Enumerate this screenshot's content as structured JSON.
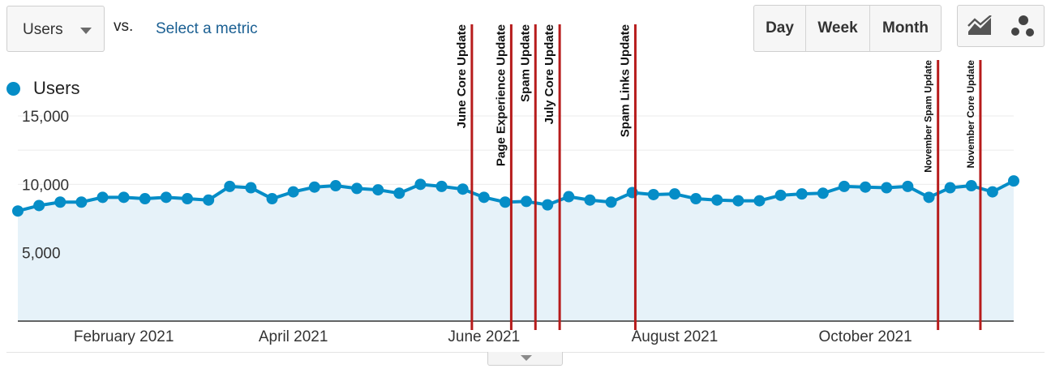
{
  "toolbar": {
    "metric_label": "Users",
    "vs_label": "vs.",
    "select_metric_label": "Select a metric",
    "periods": [
      {
        "label": "Day",
        "active": false
      },
      {
        "label": "Week",
        "active": true
      },
      {
        "label": "Month",
        "active": false
      }
    ],
    "chart_types": [
      {
        "icon": "line-chart-icon",
        "active": true
      },
      {
        "icon": "motion-chart-icon",
        "active": false
      }
    ]
  },
  "colors": {
    "series": "#058dc7",
    "area_fill": "#e6f2f9",
    "annotation_line": "#b71c1c",
    "grid": "#ebebeb",
    "axis": "#333333"
  },
  "chart_data": {
    "type": "area",
    "title": "",
    "xlabel": "",
    "ylabel": "",
    "ylim": [
      0,
      15000
    ],
    "y_ticks": [
      {
        "value": 15000,
        "label": "15,000"
      },
      {
        "value": 10000,
        "label": "10,000"
      },
      {
        "value": 5000,
        "label": "5,000"
      }
    ],
    "x_range": [
      "2021-01-03",
      "2021-11-28"
    ],
    "x_ticks": [
      {
        "date": "2021-02-07",
        "label": "February 2021"
      },
      {
        "date": "2021-04-04",
        "label": "April 2021"
      },
      {
        "date": "2021-06-06",
        "label": "June 2021"
      },
      {
        "date": "2021-08-08",
        "label": "August 2021"
      },
      {
        "date": "2021-10-10",
        "label": "October 2021"
      }
    ],
    "legend": {
      "position": "top-left"
    },
    "grid": true,
    "series": [
      {
        "name": "Users",
        "x": [
          "2021-01-03",
          "2021-01-10",
          "2021-01-17",
          "2021-01-24",
          "2021-01-31",
          "2021-02-07",
          "2021-02-14",
          "2021-02-21",
          "2021-02-28",
          "2021-03-07",
          "2021-03-14",
          "2021-03-21",
          "2021-03-28",
          "2021-04-04",
          "2021-04-11",
          "2021-04-18",
          "2021-04-25",
          "2021-05-02",
          "2021-05-09",
          "2021-05-16",
          "2021-05-23",
          "2021-05-30",
          "2021-06-06",
          "2021-06-13",
          "2021-06-20",
          "2021-06-27",
          "2021-07-04",
          "2021-07-11",
          "2021-07-18",
          "2021-07-25",
          "2021-08-01",
          "2021-08-08",
          "2021-08-15",
          "2021-08-22",
          "2021-08-29",
          "2021-09-05",
          "2021-09-12",
          "2021-09-19",
          "2021-09-26",
          "2021-10-03",
          "2021-10-10",
          "2021-10-17",
          "2021-10-24",
          "2021-10-31",
          "2021-11-07",
          "2021-11-14",
          "2021-11-21",
          "2021-11-28"
        ],
        "values": [
          8050,
          8450,
          8700,
          8700,
          9050,
          9050,
          8950,
          9050,
          8950,
          8850,
          9850,
          9750,
          8950,
          9450,
          9800,
          9900,
          9700,
          9600,
          9350,
          10000,
          9850,
          9650,
          9050,
          8700,
          8750,
          8500,
          9100,
          8850,
          8700,
          9400,
          9250,
          9300,
          8950,
          8850,
          8800,
          8800,
          9200,
          9300,
          9350,
          9850,
          9800,
          9750,
          9850,
          9050,
          9750,
          9900,
          9450,
          10250
        ]
      }
    ],
    "annotations": [
      {
        "label": "June Core Update",
        "date": "2021-06-02"
      },
      {
        "label": "Page Experience Update",
        "date": "2021-06-15"
      },
      {
        "label": "Spam Update",
        "date": "2021-06-23"
      },
      {
        "label": "July Core Update",
        "date": "2021-07-01"
      },
      {
        "label": "Spam Links Update",
        "date": "2021-07-26"
      },
      {
        "label": "November Spam Update",
        "date": "2021-11-03"
      },
      {
        "label": "November Core Update",
        "date": "2021-11-17"
      }
    ]
  }
}
